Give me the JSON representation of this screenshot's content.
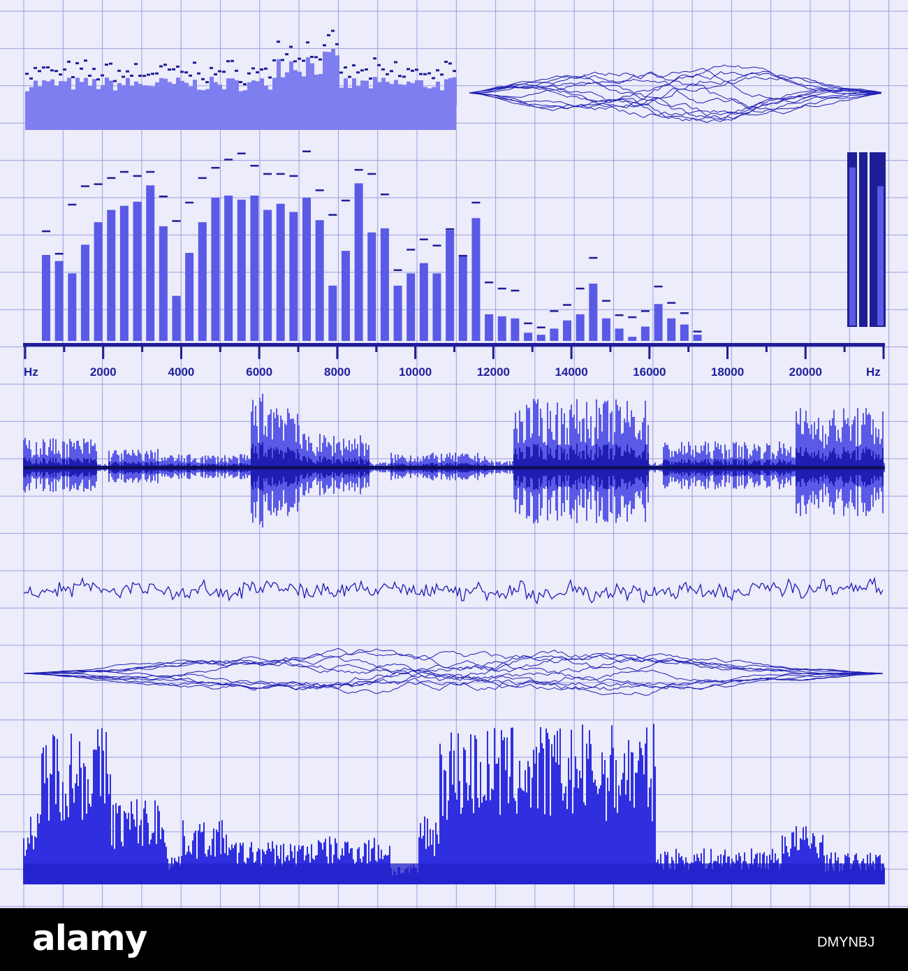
{
  "brand": {
    "wordmark": "alamy",
    "image_id": "DMYNBJ"
  },
  "colors": {
    "background": "#ececfa",
    "grid": "#9c9ce0",
    "bar": "#5a5ae6",
    "bar_light": "#7e7ef0",
    "line": "#1e1eb4",
    "axis": "#1e1e96",
    "footer": "#000000",
    "footer_text": "#ffffff"
  },
  "chart_data": [
    {
      "type": "bar",
      "title": "",
      "xlabel": "Hz",
      "xlabel_right": "Hz",
      "unit": "Hz",
      "x_ticks": [
        "2000",
        "4000",
        "6000",
        "8000",
        "10000",
        "12000",
        "14000",
        "16000",
        "18000",
        "20000"
      ],
      "xlim": [
        0,
        22000
      ],
      "ylim": [
        0,
        100
      ],
      "grid": true,
      "series": [
        {
          "values": [
            42,
            39,
            33,
            47,
            58,
            64,
            66,
            68,
            76,
            56,
            22,
            43,
            58,
            70,
            71,
            69,
            71,
            64,
            67,
            63,
            70,
            59,
            27,
            44,
            77,
            53,
            55,
            27,
            33,
            38,
            33,
            54,
            42,
            60,
            13,
            12,
            11,
            4,
            3,
            6,
            10,
            13,
            28,
            11,
            6,
            2,
            7,
            18,
            11,
            8,
            3
          ],
          "peaks": [
            54,
            43,
            67,
            76,
            77,
            80,
            83,
            81,
            83,
            71,
            59,
            68,
            80,
            85,
            89,
            92,
            86,
            82,
            82,
            81,
            93,
            74,
            62,
            69,
            84,
            82,
            72,
            35,
            45,
            50,
            47,
            55,
            42,
            68,
            29,
            26,
            25,
            9,
            7,
            15,
            18,
            26,
            41,
            20,
            13,
            12,
            15,
            27,
            19,
            14,
            5
          ]
        }
      ]
    },
    {
      "type": "bar",
      "title": "",
      "xlabel": "",
      "ylabel": "",
      "ylim": [
        0,
        100
      ],
      "grid": true,
      "series": [
        {
          "values": [
            92,
            81
          ]
        },
        {
          "values": [
            100,
            100
          ]
        }
      ]
    }
  ]
}
